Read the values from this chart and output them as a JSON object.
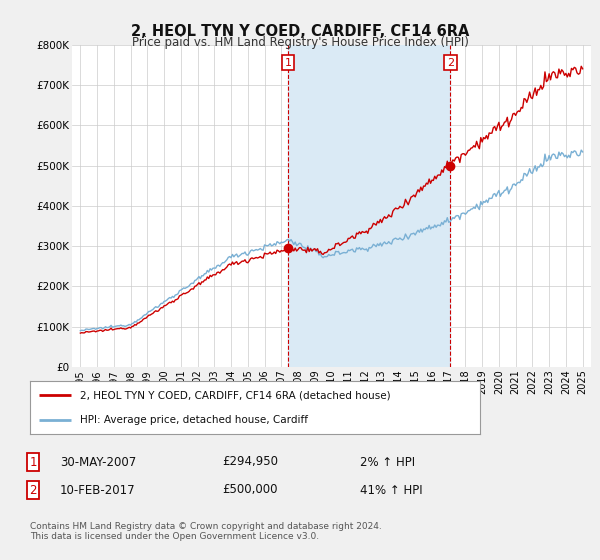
{
  "title": "2, HEOL TYN Y COED, CARDIFF, CF14 6RA",
  "subtitle": "Price paid vs. HM Land Registry's House Price Index (HPI)",
  "legend_label_red": "2, HEOL TYN Y COED, CARDIFF, CF14 6RA (detached house)",
  "legend_label_blue": "HPI: Average price, detached house, Cardiff",
  "annotation1_date": "30-MAY-2007",
  "annotation1_price": "£294,950",
  "annotation1_hpi": "2% ↑ HPI",
  "annotation2_date": "10-FEB-2017",
  "annotation2_price": "£500,000",
  "annotation2_hpi": "41% ↑ HPI",
  "footer": "Contains HM Land Registry data © Crown copyright and database right 2024.\nThis data is licensed under the Open Government Licence v3.0.",
  "ylim": [
    0,
    800000
  ],
  "yticks": [
    0,
    100000,
    200000,
    300000,
    400000,
    500000,
    600000,
    700000,
    800000
  ],
  "ytick_labels": [
    "£0",
    "£100K",
    "£200K",
    "£300K",
    "£400K",
    "£500K",
    "£600K",
    "£700K",
    "£800K"
  ],
  "background_color": "#f0f0f0",
  "plot_bg_color": "#ffffff",
  "red_color": "#cc0000",
  "blue_color": "#7ab0d4",
  "shade_color": "#daeaf5",
  "grid_color": "#cccccc",
  "sale1_year": 2007.4,
  "sale1_price": 294950,
  "sale2_year": 2017.1,
  "sale2_price": 500000
}
